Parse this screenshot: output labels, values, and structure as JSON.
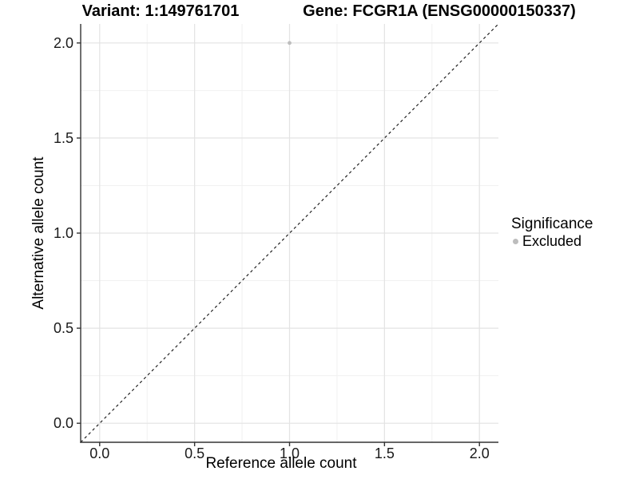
{
  "chart_data": {
    "type": "scatter",
    "title_left": "Variant: 1:149761701",
    "title_right": "Gene: FCGR1A (ENSG00000150337)",
    "xlabel": "Reference allele count",
    "ylabel": "Alternative allele count",
    "xlim": [
      -0.1,
      2.1
    ],
    "ylim": [
      -0.1,
      2.1
    ],
    "x_ticks": {
      "values": [
        0,
        0.5,
        1,
        1.5,
        2
      ],
      "labels": [
        "0.0",
        "0.5",
        "1.0",
        "1.5",
        "2.0"
      ]
    },
    "y_ticks": {
      "values": [
        0,
        0.5,
        1,
        1.5,
        2
      ],
      "labels": [
        "0.0",
        "0.5",
        "1.0",
        "1.5",
        "2.0"
      ]
    },
    "minor_ticks": [
      0.25,
      0.75,
      1.25,
      1.75
    ],
    "grid": "major and minor, light grey on white panel",
    "points": [
      {
        "x": 1.0,
        "y": 2.0,
        "series": "Excluded"
      }
    ],
    "reference_line": {
      "slope": 1,
      "intercept": 0,
      "style": "dashed",
      "color": "#111111"
    },
    "legend": {
      "title": "Significance",
      "position": "right",
      "items": [
        {
          "label": "Excluded",
          "color": "#bdbdbd"
        }
      ]
    },
    "colors": {
      "point": "#bdbdbd",
      "grid_major": "#e3e3e3",
      "grid_minor": "#f1f1f1",
      "axis_line": "#333333",
      "tick_text": "#1a1a1a"
    }
  }
}
